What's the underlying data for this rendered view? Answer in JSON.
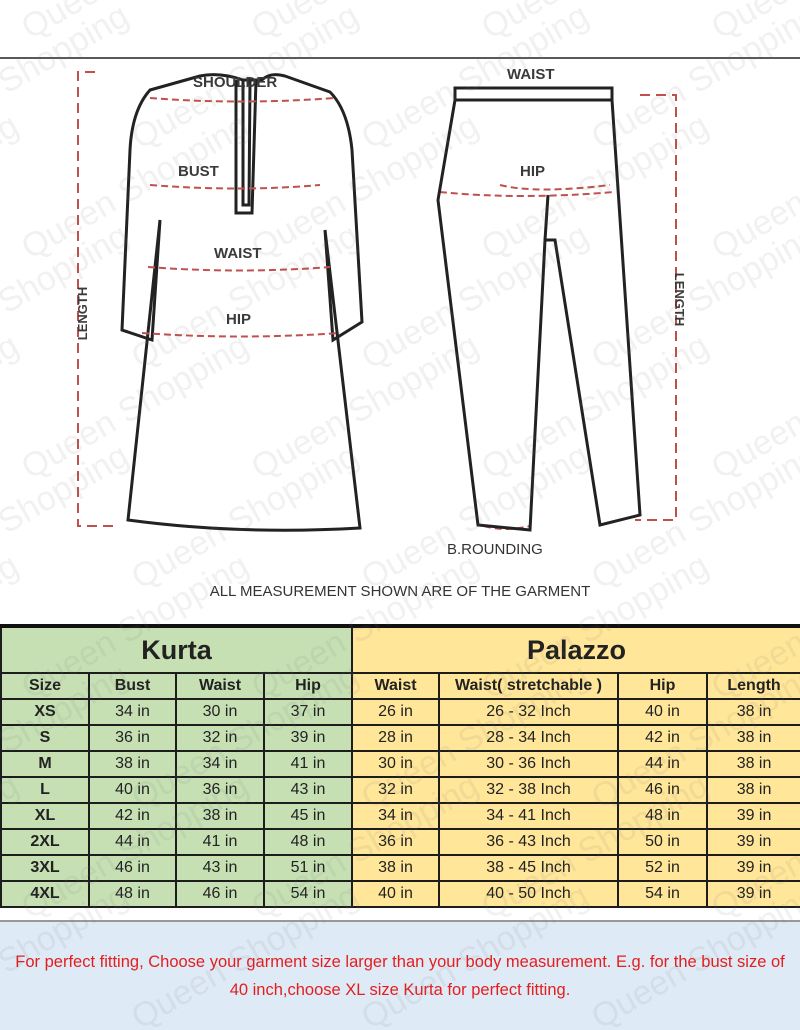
{
  "diagram": {
    "kurta_labels": {
      "shoulder": "SHOULDER",
      "bust": "BUST",
      "waist": "WAIST",
      "hip": "HIP",
      "length": "LENGTH"
    },
    "palazzo_labels": {
      "waist": "WAIST",
      "hip": "HIP",
      "length": "LENGTH",
      "bottom": "B.ROUNDING"
    },
    "note": "ALL MEASUREMENT SHOWN ARE OF THE GARMENT"
  },
  "watermark": "Queen Shopping",
  "table": {
    "groups": {
      "kurta": "Kurta",
      "palazzo": "Palazzo"
    },
    "headers": [
      "Size",
      "Bust",
      "Waist",
      "Hip",
      "Waist",
      "Waist( stretchable )",
      "Hip",
      "Length"
    ],
    "rows": [
      [
        "XS",
        "34 in",
        "30 in",
        "37 in",
        "26 in",
        "26 - 32 Inch",
        "40 in",
        "38 in"
      ],
      [
        "S",
        "36 in",
        "32 in",
        "39 in",
        "28 in",
        "28 - 34 Inch",
        "42 in",
        "38 in"
      ],
      [
        "M",
        "38 in",
        "34 in",
        "41 in",
        "30 in",
        "30 - 36 Inch",
        "44 in",
        "38 in"
      ],
      [
        "L",
        "40 in",
        "36 in",
        "43 in",
        "32 in",
        "32 - 38 Inch",
        "46 in",
        "38 in"
      ],
      [
        "XL",
        "42 in",
        "38 in",
        "45 in",
        "34 in",
        "34 - 41 Inch",
        "48 in",
        "39 in"
      ],
      [
        "2XL",
        "44 in",
        "41 in",
        "48 in",
        "36 in",
        "36 - 43 Inch",
        "50 in",
        "39 in"
      ],
      [
        "3XL",
        "46 in",
        "43 in",
        "51 in",
        "38 in",
        "38 - 45 Inch",
        "52 in",
        "39 in"
      ],
      [
        "4XL",
        "48 in",
        "46 in",
        "54 in",
        "40 in",
        "40 - 50 Inch",
        "54 in",
        "39 in"
      ]
    ]
  },
  "footer": {
    "text": "For perfect fitting, Choose your garment size larger than your body measurement. E.g. for the bust size of 40 inch,choose XL size Kurta for perfect fitting."
  },
  "colors": {
    "kurta_bg": "#c6e0b4",
    "palazzo_bg": "#ffe699",
    "footer_bg": "#deeaf6",
    "footer_text": "#e41e1e",
    "measure_line": "#c0504d"
  }
}
